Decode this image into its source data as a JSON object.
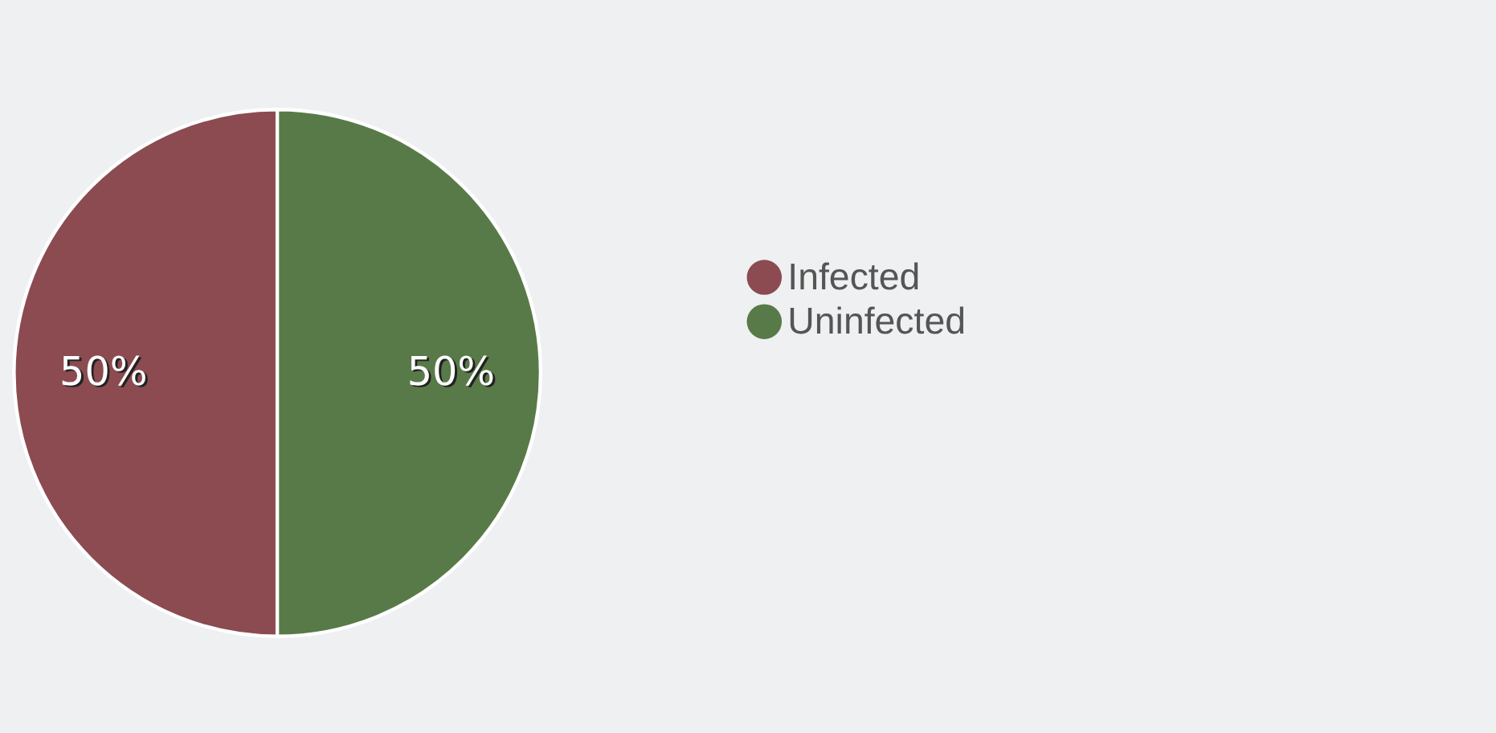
{
  "chart_data": {
    "type": "pie",
    "categories": [
      "Infected",
      "Uninfected"
    ],
    "values": [
      50,
      50
    ],
    "colors": [
      "#8b4b50",
      "#587a48"
    ],
    "value_labels": [
      "50%",
      "50%"
    ],
    "legend": "right"
  }
}
